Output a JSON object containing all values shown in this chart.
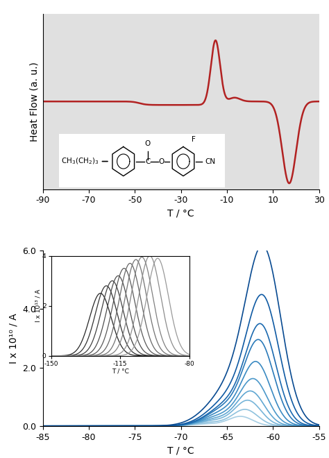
{
  "top_panel": {
    "bg_color": "#e0e0e0",
    "line_color": "#b22222",
    "xlim": [
      -90,
      30
    ],
    "xticks": [
      -90,
      -70,
      -50,
      -30,
      -10,
      10,
      30
    ],
    "xlabel": "T / °C",
    "ylabel": "Heat Flow (a. u.)",
    "line_width": 1.8,
    "ylim": [
      -3.0,
      3.0
    ]
  },
  "bottom_panel": {
    "bg_color": "#ffffff",
    "xlim": [
      -85,
      -55
    ],
    "ylim": [
      0,
      6.0
    ],
    "xticks": [
      -85,
      -80,
      -75,
      -70,
      -65,
      -60,
      -55
    ],
    "yticks": [
      0.0,
      2.0,
      4.0,
      6.0
    ],
    "xlabel": "T / °C",
    "ylabel": "I x 10¹⁰ / A",
    "num_curves": 10,
    "peak_positions": [
      -63.5,
      -63.0,
      -62.7,
      -62.4,
      -62.1,
      -61.8,
      -61.5,
      -61.3,
      -61.1,
      -61.0
    ],
    "peak_amps": [
      0.32,
      0.55,
      0.85,
      1.15,
      1.55,
      2.1,
      2.8,
      3.3,
      4.2,
      5.7
    ],
    "peak_sigmas": [
      1.3,
      1.35,
      1.4,
      1.45,
      1.5,
      1.55,
      1.6,
      1.65,
      1.75,
      1.9
    ],
    "shoulder_offsets": [
      -3.5,
      -3.5,
      -3.5,
      -3.5,
      -3.5,
      -3.5,
      -3.5,
      -3.5,
      -3.5,
      -3.5
    ],
    "shoulder_fracs": [
      0.22,
      0.22,
      0.22,
      0.22,
      0.22,
      0.22,
      0.22,
      0.22,
      0.22,
      0.22
    ]
  },
  "inset": {
    "xlim": [
      -150,
      -80
    ],
    "ylim": [
      0,
      4
    ],
    "xticks": [
      -150,
      -115,
      -80
    ],
    "yticks": [
      0,
      2,
      4
    ],
    "xlabel": "T / °C",
    "ylabel": "I x 10¹³ / A",
    "num_curves": 10,
    "peak_positions": [
      -125,
      -122,
      -119,
      -116,
      -113,
      -110,
      -107,
      -104,
      -100,
      -96
    ],
    "peak_amps": [
      2.5,
      2.8,
      3.0,
      3.2,
      3.5,
      3.7,
      3.85,
      3.95,
      4.0,
      3.9
    ],
    "peak_sigmas": [
      5.5,
      5.5,
      5.5,
      5.5,
      5.5,
      5.5,
      5.5,
      5.5,
      5.5,
      5.5
    ]
  }
}
